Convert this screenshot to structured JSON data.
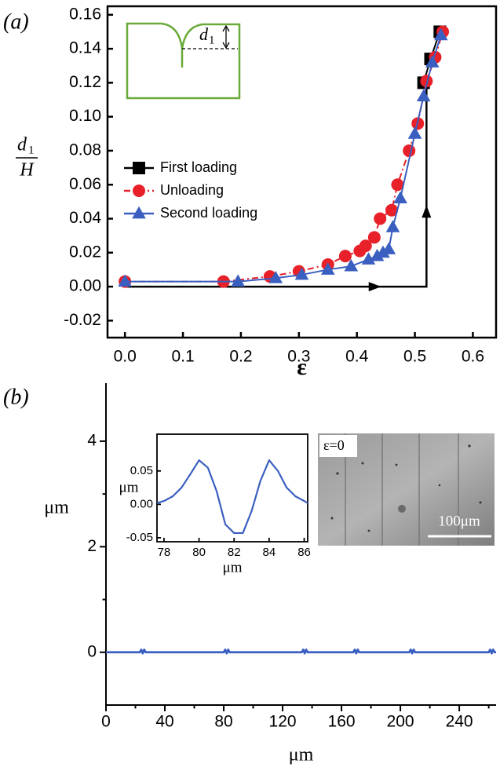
{
  "chart_data": [
    {
      "type": "line",
      "panel_label": "(a)",
      "xlabel": "ε",
      "ylabel": {
        "symbol": "d",
        "subscript": "1",
        "denominator": "H"
      },
      "inset_label": {
        "symbol": "d",
        "subscript": "1"
      },
      "xlim": [
        -0.03,
        0.64
      ],
      "ylim": [
        -0.03,
        0.165
      ],
      "xticks": [
        {
          "value": 0,
          "label": "0.0"
        },
        0.1,
        0.2,
        0.3,
        0.4,
        0.5,
        0.6
      ],
      "yticks": [
        -0.02,
        {
          "value": 0,
          "label": "0.00"
        },
        0.02,
        0.04,
        0.06,
        0.08,
        {
          "value": 0.1,
          "label": "0.10"
        },
        0.12,
        0.14,
        0.16
      ],
      "legend": "left",
      "path": {
        "color": "#000000",
        "x": [
          0,
          0.52,
          0.52
        ],
        "values": [
          0,
          0,
          0.12
        ]
      },
      "series": [
        {
          "name": "First loading",
          "color": "#000000",
          "marker": "square",
          "linestyle": "solid",
          "x": [
            0.515,
            0.527,
            0.543
          ],
          "values": [
            0.12,
            0.134,
            0.15
          ]
        },
        {
          "name": "Unloading",
          "color": "#e8202a",
          "marker": "circle",
          "linestyle": "dashdot",
          "x": [
            0,
            0.17,
            0.25,
            0.3,
            0.35,
            0.38,
            0.405,
            0.415,
            0.43,
            0.44,
            0.46,
            0.47,
            0.49,
            0.505,
            0.52,
            0.535,
            0.548
          ],
          "values": [
            0.003,
            0.003,
            0.006,
            0.009,
            0.013,
            0.018,
            0.021,
            0.024,
            0.029,
            0.04,
            0.045,
            0.06,
            0.08,
            0.096,
            0.121,
            0.135,
            0.15
          ]
        },
        {
          "name": "Second loading",
          "color": "#3a5fc0",
          "marker": "triangle",
          "linestyle": "solid",
          "x": [
            0,
            0.195,
            0.26,
            0.305,
            0.35,
            0.39,
            0.42,
            0.435,
            0.445,
            0.455,
            0.462,
            0.475,
            0.5,
            0.515,
            0.53,
            0.545
          ],
          "values": [
            0.003,
            0.003,
            0.005,
            0.007,
            0.01,
            0.012,
            0.016,
            0.018,
            0.02,
            0.022,
            0.035,
            0.052,
            0.09,
            0.112,
            0.132,
            0.148
          ]
        }
      ]
    },
    {
      "type": "line",
      "panel_label": "(b)",
      "xlabel": "μm",
      "ylabel": "μm",
      "xlim": [
        0,
        265
      ],
      "ylim": [
        -1,
        5.1
      ],
      "xticks": [
        0,
        40,
        80,
        120,
        160,
        200,
        240
      ],
      "xminorticks": [
        20,
        60,
        100,
        140,
        180,
        220,
        260
      ],
      "yticks": [
        0,
        2,
        4
      ],
      "yminorticks": [
        1,
        3
      ],
      "x": [
        0,
        23,
        24,
        25,
        26,
        27,
        80,
        81,
        82,
        83,
        84,
        133,
        134,
        135,
        136,
        137,
        168,
        169,
        170,
        171,
        172,
        206,
        207,
        208,
        209,
        210,
        260,
        261,
        262,
        263,
        264,
        265
      ],
      "series": [
        {
          "color": "#3a5fc0",
          "linestyle": "solid",
          "values": [
            0,
            0,
            0.05,
            -0.02,
            0.05,
            0,
            0,
            0.05,
            -0.02,
            0.05,
            0,
            0,
            0.05,
            -0.02,
            0.05,
            0,
            0,
            0.05,
            -0.02,
            0.05,
            0,
            0,
            0.05,
            -0.02,
            0.05,
            0,
            0,
            0.05,
            -0.02,
            0.05,
            0,
            0
          ]
        }
      ]
    },
    {
      "type": "line",
      "xlabel": "μm",
      "ylabel": "μm",
      "xlim": [
        77.6,
        86.2
      ],
      "ylim": [
        -0.056,
        0.105
      ],
      "xticks": [
        78,
        80,
        82,
        84,
        86
      ],
      "yticks": [
        0.05,
        {
          "value": 0,
          "label": "0.00"
        },
        -0.05
      ],
      "x": [
        77.6,
        78,
        78.5,
        79,
        79.5,
        80,
        80.5,
        81,
        81.5,
        82,
        82.5,
        83,
        83.5,
        84,
        84.5,
        85,
        85.5,
        86,
        86.2
      ],
      "series": [
        {
          "color": "#3a5fc0",
          "linestyle": "solid",
          "values": [
            0.002,
            0.005,
            0.012,
            0.025,
            0.045,
            0.066,
            0.055,
            0.02,
            -0.03,
            -0.043,
            -0.043,
            -0.01,
            0.035,
            0.066,
            0.05,
            0.025,
            0.012,
            0.005,
            0.002
          ]
        }
      ]
    }
  ],
  "image_inset": {
    "label": "ε=0",
    "scale_bar": "100μm"
  }
}
